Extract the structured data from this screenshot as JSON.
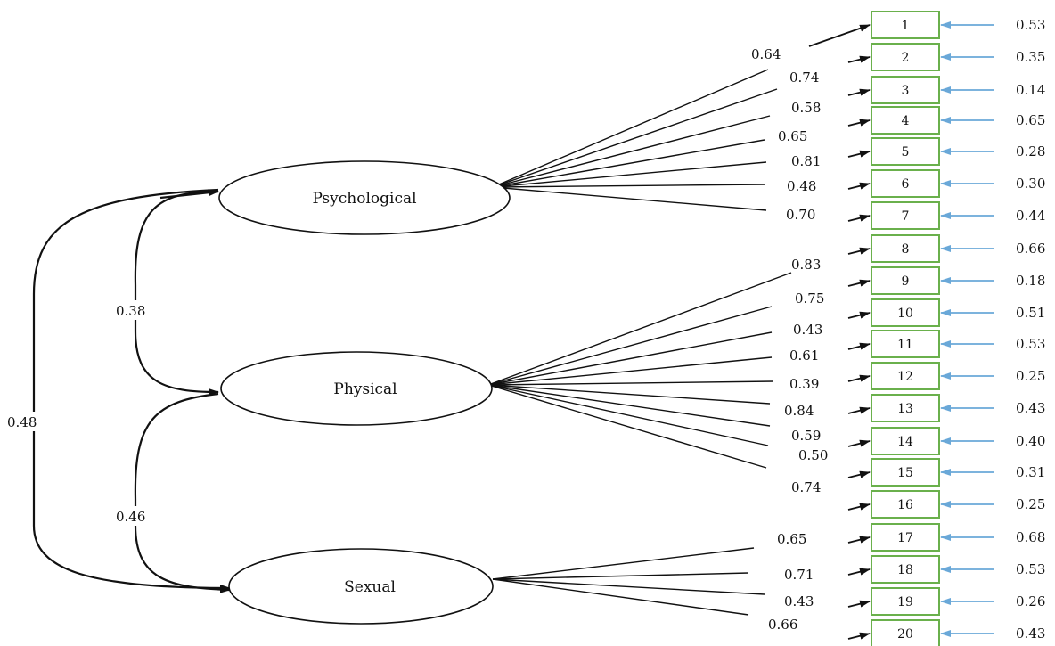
{
  "colors": {
    "item_border": "#6ab04c",
    "error_arrow": "#6aa8d8",
    "line": "#111111"
  },
  "factors": [
    {
      "id": "psychological",
      "label": "Psychological"
    },
    {
      "id": "physical",
      "label": "Physical"
    },
    {
      "id": "sexual",
      "label": "Sexual"
    }
  ],
  "correlations": [
    {
      "between": [
        "Psychological",
        "Physical"
      ],
      "value": "0.38"
    },
    {
      "between": [
        "Physical",
        "Sexual"
      ],
      "value": "0.46"
    },
    {
      "between": [
        "Psychological",
        "Sexual"
      ],
      "value": "0.48"
    }
  ],
  "items": [
    {
      "label": "1",
      "factor": "psychological",
      "loading": "0.64",
      "error": "0.53"
    },
    {
      "label": "2",
      "factor": "psychological",
      "loading": "0.74",
      "error": "0.35"
    },
    {
      "label": "3",
      "factor": "psychological",
      "loading": "0.58",
      "error": "0.14"
    },
    {
      "label": "4",
      "factor": "psychological",
      "loading": "0.65",
      "error": "0.65"
    },
    {
      "label": "5",
      "factor": "psychological",
      "loading": "0.81",
      "error": "0.28"
    },
    {
      "label": "6",
      "factor": "psychological",
      "loading": "0.48",
      "error": "0.30"
    },
    {
      "label": "7",
      "factor": "psychological",
      "loading": "0.70",
      "error": "0.44"
    },
    {
      "label": "8",
      "factor": "physical",
      "loading": "0.83",
      "error": "0.66"
    },
    {
      "label": "9",
      "factor": "physical",
      "loading": "0.75",
      "error": "0.18"
    },
    {
      "label": "10",
      "factor": "physical",
      "loading": "0.43",
      "error": "0.51"
    },
    {
      "label": "11",
      "factor": "physical",
      "loading": "0.61",
      "error": "0.53"
    },
    {
      "label": "12",
      "factor": "physical",
      "loading": "0.39",
      "error": "0.25"
    },
    {
      "label": "13",
      "factor": "physical",
      "loading": "0.84",
      "error": "0.43"
    },
    {
      "label": "14",
      "factor": "physical",
      "loading": "0.59",
      "error": "0.40"
    },
    {
      "label": "15",
      "factor": "physical",
      "loading": "0.50",
      "error": "0.31"
    },
    {
      "label": "16",
      "factor": "physical",
      "loading": "0.74",
      "error": "0.25"
    },
    {
      "label": "17",
      "factor": "sexual",
      "loading": "0.65",
      "error": "0.68"
    },
    {
      "label": "18",
      "factor": "sexual",
      "loading": "0.71",
      "error": "0.53"
    },
    {
      "label": "19",
      "factor": "sexual",
      "loading": "0.43",
      "error": "0.26"
    },
    {
      "label": "20",
      "factor": "sexual",
      "loading": "0.66",
      "error": "0.43"
    }
  ]
}
